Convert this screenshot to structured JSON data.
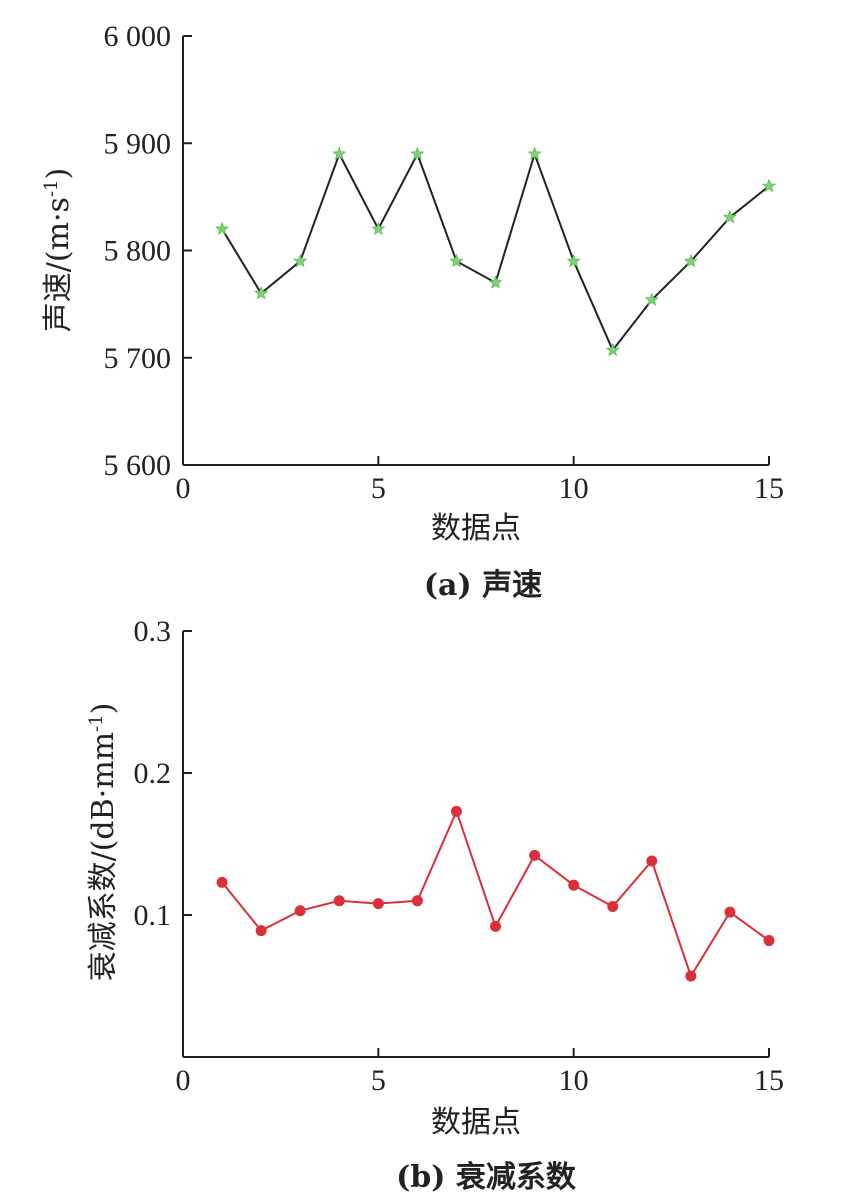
{
  "chart_data": [
    {
      "type": "line",
      "caption": "(a) 声速",
      "xlabel": "数据点",
      "ylabel": "声速/(m·s",
      "ylabel_sup": "-1",
      "ylabel_close": ")",
      "xlim": [
        0,
        15
      ],
      "ylim": [
        5600,
        6000
      ],
      "x_ticks": [
        0,
        5,
        10,
        15
      ],
      "x_tick_labels": [
        "0",
        "5",
        "10",
        "15"
      ],
      "y_ticks": [
        5600,
        5700,
        5800,
        5900,
        6000
      ],
      "y_tick_labels": [
        "5 600",
        "5 700",
        "5 800",
        "5 900",
        "6 000"
      ],
      "grid": false,
      "line_color": "#222222",
      "marker": "star",
      "marker_color": "#7ed36f",
      "series": [
        {
          "x": [
            1,
            2,
            3,
            4,
            5,
            6,
            7,
            8,
            9,
            10,
            11,
            12,
            13,
            14,
            15
          ],
          "values": [
            5820,
            5760,
            5790,
            5890,
            5820,
            5890,
            5790,
            5770,
            5890,
            5790,
            5707,
            5754,
            5790,
            5831,
            5860
          ]
        }
      ]
    },
    {
      "type": "line",
      "caption": "(b) 衰减系数",
      "xlabel": "数据点",
      "ylabel": "衰减系数/(dB·mm",
      "ylabel_sup": "-1",
      "ylabel_close": ")",
      "xlim": [
        0,
        15
      ],
      "ylim": [
        0,
        0.3
      ],
      "x_ticks": [
        0,
        5,
        10,
        15
      ],
      "x_tick_labels": [
        "0",
        "5",
        "10",
        "15"
      ],
      "y_ticks": [
        0.1,
        0.2,
        0.3
      ],
      "y_tick_labels": [
        "0.1",
        "0.2",
        "0.3"
      ],
      "grid": false,
      "line_color": "#d9303a",
      "marker": "circle",
      "marker_color": "#d9303a",
      "series": [
        {
          "x": [
            1,
            2,
            3,
            4,
            5,
            6,
            7,
            8,
            9,
            10,
            11,
            12,
            13,
            14,
            15
          ],
          "values": [
            0.123,
            0.089,
            0.103,
            0.11,
            0.108,
            0.11,
            0.173,
            0.092,
            0.142,
            0.121,
            0.106,
            0.138,
            0.057,
            0.102,
            0.082
          ]
        }
      ]
    }
  ]
}
